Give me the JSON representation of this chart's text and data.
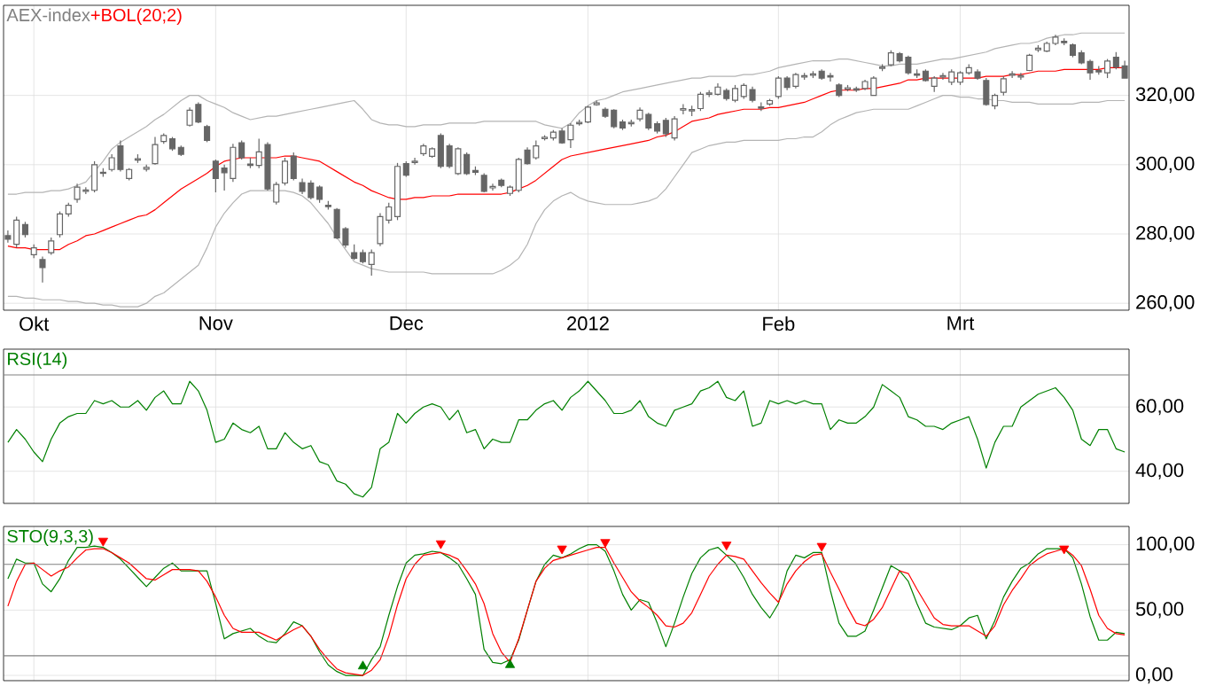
{
  "chart_data": [
    {
      "type": "candlestick",
      "title": "AEX-index",
      "legend": "top left",
      "grid": true,
      "color": "#666666",
      "ylim": [
        258,
        346
      ],
      "yticks": [
        {
          "value": 260,
          "label": "260,00"
        },
        {
          "value": 280,
          "label": "280,00"
        },
        {
          "value": 300,
          "label": "300,00"
        },
        {
          "value": 320,
          "label": "320,00"
        }
      ],
      "categories": [
        null,
        null,
        null,
        "Okt",
        null,
        null,
        null,
        null,
        null,
        null,
        null,
        null,
        null,
        null,
        null,
        null,
        null,
        null,
        null,
        null,
        null,
        null,
        null,
        null,
        "Nov",
        null,
        null,
        null,
        null,
        null,
        null,
        null,
        null,
        null,
        null,
        null,
        null,
        null,
        null,
        null,
        null,
        null,
        null,
        null,
        null,
        null,
        "Dec",
        null,
        null,
        null,
        null,
        null,
        null,
        null,
        null,
        null,
        null,
        null,
        null,
        null,
        null,
        null,
        null,
        null,
        null,
        null,
        null,
        "2012",
        null,
        null,
        null,
        null,
        null,
        null,
        null,
        null,
        null,
        null,
        null,
        null,
        null,
        null,
        null,
        null,
        null,
        null,
        null,
        null,
        null,
        "Feb",
        null,
        null,
        null,
        null,
        null,
        null,
        null,
        null,
        null,
        null,
        null,
        null,
        null,
        null,
        null,
        null,
        null,
        null,
        null,
        null,
        "Mrt",
        null,
        null,
        null,
        null,
        null,
        null,
        null,
        null,
        null,
        null,
        null,
        null,
        null,
        null,
        null,
        null,
        null,
        null,
        null
      ],
      "ohlc": [
        [
          279.5,
          281,
          277.5,
          278.5
        ],
        [
          277,
          285,
          276,
          284
        ],
        [
          282.7,
          283.5,
          279,
          279.8
        ],
        [
          274,
          277,
          273,
          276
        ],
        [
          272.6,
          273.5,
          266,
          270.3
        ],
        [
          274.6,
          279,
          274,
          278
        ],
        [
          279.8,
          286.5,
          279,
          285.8
        ],
        [
          285.8,
          289,
          285,
          288.3
        ],
        [
          290,
          294.5,
          289,
          293.5
        ],
        [
          292.3,
          293.5,
          291.5,
          292.7
        ],
        [
          292.6,
          301,
          292,
          300
        ],
        [
          297.8,
          299,
          296.5,
          297.5
        ],
        [
          298.6,
          303,
          298,
          302
        ],
        [
          305.4,
          307,
          298,
          298.6
        ],
        [
          296,
          299,
          295.5,
          298.6
        ],
        [
          301.3,
          303,
          300.5,
          301.7
        ],
        [
          298.7,
          300,
          298,
          299.2
        ],
        [
          300.3,
          308,
          300,
          305.8
        ],
        [
          306.7,
          309,
          306,
          308.4
        ],
        [
          307.5,
          308,
          304,
          304.6
        ],
        [
          305,
          305.5,
          302.5,
          303
        ],
        [
          311.4,
          316.5,
          311,
          315.7
        ],
        [
          317.4,
          318,
          312,
          312.3
        ],
        [
          311,
          311.5,
          306.5,
          307
        ],
        [
          301,
          301.5,
          292,
          296
        ],
        [
          299,
          300,
          292.5,
          297.7
        ],
        [
          296,
          306,
          295,
          305
        ],
        [
          306.3,
          307,
          301.5,
          302
        ],
        [
          300.2,
          302,
          299,
          299.8
        ],
        [
          299.8,
          307.5,
          299,
          303.7
        ],
        [
          305.8,
          306.5,
          292.5,
          293
        ],
        [
          289.2,
          295,
          288.5,
          294.3
        ],
        [
          294.7,
          302,
          294,
          301
        ],
        [
          302.5,
          303.5,
          295.5,
          296
        ],
        [
          294.8,
          296,
          291.5,
          292.3
        ],
        [
          294.7,
          295.5,
          290,
          290.5
        ],
        [
          293.5,
          294,
          289,
          290
        ],
        [
          288.3,
          289.5,
          287,
          287.9
        ],
        [
          287.1,
          287.5,
          278.5,
          278.9
        ],
        [
          281.5,
          282,
          276,
          276.8
        ],
        [
          274.6,
          277,
          272.5,
          273
        ],
        [
          274.6,
          275.5,
          271.5,
          272
        ],
        [
          271.2,
          275.5,
          268,
          274.6
        ],
        [
          277.2,
          286,
          276.5,
          285
        ],
        [
          284,
          289,
          283,
          287.8
        ],
        [
          285,
          300.5,
          284,
          299.5
        ],
        [
          300.3,
          301,
          296.5,
          297
        ],
        [
          300.6,
          302,
          300,
          301
        ],
        [
          303.2,
          306,
          302.5,
          305.4
        ],
        [
          302.4,
          305,
          302,
          304.6
        ],
        [
          308.4,
          309,
          299,
          299.5
        ],
        [
          305.4,
          306,
          299,
          299.5
        ],
        [
          297.4,
          305,
          297,
          304.6
        ],
        [
          302.9,
          303.5,
          297,
          297.4
        ],
        [
          298.3,
          299.5,
          297,
          297.8
        ],
        [
          296.9,
          297.5,
          292,
          292.3
        ],
        [
          293.3,
          294.5,
          292.5,
          293.7
        ],
        [
          295.5,
          296,
          293.5,
          294
        ],
        [
          291.7,
          294,
          291,
          293.5
        ],
        [
          292.6,
          302,
          292,
          301.5
        ],
        [
          304.2,
          305,
          300,
          300.3
        ],
        [
          302,
          307,
          301.5,
          305.4
        ],
        [
          307.5,
          308.5,
          307,
          307.9
        ],
        [
          307.7,
          310,
          307,
          309.4
        ],
        [
          309.7,
          310.5,
          306,
          306.3
        ],
        [
          307.2,
          312,
          304.8,
          311.4
        ],
        [
          311.8,
          313,
          311.3,
          312.2
        ],
        [
          312.3,
          317,
          312,
          316.6
        ],
        [
          317.3,
          318.5,
          317,
          317.8
        ],
        [
          316,
          316.5,
          313.5,
          314
        ],
        [
          315.7,
          316,
          310.5,
          311
        ],
        [
          312.3,
          313,
          310,
          310.6
        ],
        [
          311.8,
          313,
          311,
          312.2
        ],
        [
          313.2,
          316.5,
          312.5,
          315.7
        ],
        [
          314.5,
          315,
          310,
          310.6
        ],
        [
          311.8,
          312.5,
          309,
          309.7
        ],
        [
          312.8,
          313.5,
          308,
          308.9
        ],
        [
          307.7,
          314,
          307,
          313.2
        ],
        [
          315.8,
          317.5,
          314.5,
          316.2
        ],
        [
          315.5,
          317,
          314,
          315.9
        ],
        [
          316.2,
          321,
          315.5,
          320.3
        ],
        [
          320.3,
          321.5,
          319.5,
          320.7
        ],
        [
          320.3,
          323.5,
          320,
          322.4
        ],
        [
          321.4,
          322,
          318.5,
          319.1
        ],
        [
          318.6,
          323,
          318,
          322
        ],
        [
          319.7,
          323.5,
          319,
          322.9
        ],
        [
          321.7,
          322.5,
          318,
          318.6
        ],
        [
          316.7,
          318,
          315.5,
          316.3
        ],
        [
          317.5,
          319,
          317,
          318.5
        ],
        [
          319.7,
          325.5,
          319,
          325
        ],
        [
          325,
          325.5,
          321.5,
          322.3
        ],
        [
          322.6,
          326.5,
          322,
          326
        ],
        [
          325.3,
          326.5,
          324.5,
          325.7
        ],
        [
          325.8,
          327,
          325,
          326.2
        ],
        [
          327,
          327.5,
          324.5,
          325
        ],
        [
          325.7,
          326.5,
          324,
          325.3
        ],
        [
          323,
          323.5,
          319.5,
          320
        ],
        [
          321.8,
          323,
          321.2,
          322.2
        ],
        [
          321.9,
          322.5,
          321,
          321.5
        ],
        [
          322,
          324.5,
          321.5,
          324
        ],
        [
          320,
          325.5,
          320,
          325
        ],
        [
          327.8,
          329,
          327,
          328.2
        ],
        [
          328.8,
          333,
          328.5,
          332.3
        ],
        [
          332,
          332.5,
          329.5,
          330
        ],
        [
          331,
          331.5,
          326,
          326.5
        ],
        [
          326.2,
          327.5,
          325,
          325.8
        ],
        [
          327,
          327.5,
          324,
          324.3
        ],
        [
          322.6,
          325.5,
          321,
          325
        ],
        [
          325.3,
          326.5,
          324.5,
          325.7
        ],
        [
          323.8,
          327.5,
          323,
          326.8
        ],
        [
          323.8,
          327,
          323,
          326.5
        ],
        [
          326.5,
          329,
          326,
          328
        ],
        [
          326.8,
          327.5,
          324.5,
          325
        ],
        [
          324.3,
          325,
          317,
          317.4
        ],
        [
          317,
          320.5,
          316,
          320
        ],
        [
          320.9,
          325.5,
          320,
          324.8
        ],
        [
          325.8,
          327,
          325,
          326.2
        ],
        [
          325.3,
          326.5,
          324.5,
          325.7
        ],
        [
          327.2,
          332,
          327,
          331.6
        ],
        [
          333.2,
          334.5,
          332.5,
          333.6
        ],
        [
          332.8,
          335.5,
          332.5,
          335
        ],
        [
          335,
          337.5,
          334.5,
          336.8
        ],
        [
          335.6,
          336.5,
          334.5,
          335.2
        ],
        [
          334.6,
          335,
          331,
          331.6
        ],
        [
          332.3,
          333,
          329,
          329.4
        ],
        [
          329.8,
          330.3,
          324.5,
          326.5
        ],
        [
          327.2,
          328.5,
          326,
          326.8
        ],
        [
          326.5,
          330.5,
          325,
          329.9
        ],
        [
          331,
          332.5,
          327.5,
          328.2
        ],
        [
          328.5,
          330,
          325,
          325
        ]
      ],
      "series": [
        {
          "type": "line",
          "color": "#b4b4b4",
          "values": [
            291.5,
            291.5,
            292,
            292,
            292,
            292.5,
            292.5,
            293,
            294,
            295,
            298,
            301,
            304.5,
            306.5,
            308,
            309.5,
            311,
            313,
            314.5,
            316.5,
            318.5,
            320,
            320,
            318.5,
            317.5,
            316.5,
            315,
            314,
            313,
            313.5,
            314,
            314,
            314.5,
            315,
            315.5,
            316,
            316.5,
            317,
            317.5,
            318,
            318.5,
            316,
            313,
            312,
            311.5,
            311.5,
            311,
            311,
            311.5,
            311.5,
            311.5,
            312,
            312,
            312,
            312,
            312.5,
            312.5,
            312.5,
            312.5,
            312.5,
            312.5,
            312.5,
            311.5,
            311,
            310.5,
            312,
            315,
            317,
            318.5,
            319,
            320,
            321,
            321.5,
            322,
            322.5,
            323,
            323.5,
            324,
            324.5,
            325,
            325,
            325.5,
            325.5,
            325.5,
            325.5,
            326,
            326,
            326.5,
            327,
            328,
            328.5,
            329,
            329.5,
            330,
            330,
            330,
            330.5,
            330.5,
            330,
            329.5,
            329,
            328.5,
            328.5,
            329,
            329,
            329,
            329.5,
            330,
            330.5,
            330.5,
            331,
            331.5,
            332,
            332.5,
            333.5,
            334,
            334.5,
            335,
            335,
            335.5,
            336.5,
            337,
            337.5,
            337.5,
            338,
            338,
            338,
            338,
            338,
            338
          ]
        },
        {
          "type": "line",
          "color": "#b4b4b4",
          "values": [
            262,
            262,
            261.5,
            261.5,
            261,
            261,
            261,
            260.5,
            260.5,
            260,
            260,
            259.5,
            259.5,
            259,
            259,
            259,
            260,
            262,
            263,
            265,
            267,
            269,
            271,
            276,
            282,
            286,
            289,
            291.5,
            292.5,
            292.5,
            292.5,
            292.5,
            292.5,
            292,
            291,
            289,
            286,
            283,
            279,
            275.5,
            272,
            271,
            270,
            269.5,
            269,
            269,
            269,
            269,
            269,
            268.5,
            268.5,
            268.5,
            268.5,
            268.5,
            268.5,
            268.5,
            268.5,
            269.5,
            271,
            273,
            277,
            283,
            287,
            289.5,
            291,
            292,
            290.5,
            289.5,
            289,
            288.5,
            288.5,
            288.5,
            288.5,
            289,
            289.5,
            290.5,
            293,
            296.5,
            300,
            303.5,
            304.5,
            305.5,
            306,
            306.5,
            306.5,
            307,
            307,
            307,
            307,
            307,
            307.5,
            307.5,
            308,
            308,
            309.5,
            311.5,
            313,
            314,
            315,
            315.5,
            316,
            316,
            316,
            316,
            316,
            317,
            318,
            319,
            320,
            320,
            319.5,
            319.5,
            319,
            319,
            318.5,
            318.5,
            318,
            318,
            318,
            317.5,
            317.5,
            317.5,
            317.5,
            317.5,
            318,
            318,
            318,
            318.5,
            318.5,
            318.5
          ]
        },
        {
          "type": "line",
          "name": "+BOL(20;2)",
          "color": "#ff0000",
          "values": [
            276.5,
            276,
            276,
            275.5,
            275.5,
            275.5,
            275.5,
            277,
            278,
            279.5,
            280,
            281,
            282,
            283,
            284,
            285,
            285.5,
            287,
            289,
            291,
            293,
            294.5,
            296,
            297.5,
            299.5,
            301,
            301.5,
            302,
            302,
            302,
            302,
            302,
            302.5,
            302.5,
            302,
            301.5,
            301,
            299.5,
            298,
            296.5,
            295,
            294,
            292.5,
            291.5,
            290.5,
            290,
            290,
            290.5,
            290.5,
            291,
            291,
            291,
            291.5,
            291.5,
            291.5,
            291.5,
            291.5,
            291.5,
            292,
            293,
            294,
            295.5,
            297.5,
            299.5,
            301.5,
            302.5,
            303,
            303.5,
            304,
            304.5,
            305,
            305.5,
            306,
            306.5,
            307,
            308,
            308.5,
            309.5,
            311,
            312.5,
            313,
            313.5,
            314.5,
            315,
            315.5,
            316,
            316,
            316,
            316.5,
            316.5,
            317,
            317.5,
            318,
            319,
            320,
            321,
            321.5,
            321.5,
            321.5,
            322,
            322,
            322.5,
            323,
            323.5,
            324.5,
            324.5,
            325,
            325,
            325,
            325,
            325,
            325,
            325,
            325.5,
            325.5,
            325.5,
            326,
            326,
            326.5,
            327,
            327,
            327,
            327.5,
            327.5,
            327.5,
            327.5,
            327.5,
            328,
            328,
            328
          ]
        }
      ]
    },
    {
      "type": "line",
      "legend": "top left",
      "grid": true,
      "tick_labels": "y",
      "ylim": [
        30,
        78
      ],
      "yticks": [
        {
          "value": 40,
          "label": "40,00"
        },
        {
          "value": 60,
          "label": "60,00"
        }
      ],
      "categories": [
        null,
        null,
        null,
        null,
        null,
        null,
        null,
        null,
        null,
        null,
        null,
        null,
        null,
        null,
        null,
        null,
        null,
        null,
        null,
        null,
        null,
        null,
        null,
        null,
        null,
        null,
        null,
        null,
        null,
        null,
        null,
        null,
        null,
        null,
        null,
        null,
        null,
        null,
        null,
        null,
        null,
        null,
        null,
        null,
        null,
        null,
        null,
        null,
        null,
        null,
        null,
        null,
        null,
        null,
        null,
        null,
        null,
        null,
        null,
        null,
        null,
        null,
        null,
        null,
        null,
        null,
        null,
        null,
        null,
        null,
        null,
        null,
        null,
        null,
        null,
        null,
        null,
        null,
        null,
        null,
        null,
        null,
        null,
        null,
        null,
        null,
        null,
        null,
        null,
        null,
        null,
        null,
        null,
        null,
        null,
        null,
        null,
        null,
        null,
        null,
        null,
        null,
        null,
        null,
        null,
        null,
        null,
        null,
        null,
        null,
        null,
        null,
        null,
        null,
        null,
        null,
        null,
        null,
        null,
        null,
        null,
        null,
        null,
        null,
        null,
        null,
        null,
        null,
        null,
        null
      ],
      "ref_lines": [
        {
          "axis": "y",
          "value": 70,
          "color": "#808080"
        }
      ],
      "series": [
        {
          "name": "RSI(14)",
          "color": "#008000",
          "values": [
            49,
            53,
            50,
            46,
            43,
            50,
            55,
            57,
            58,
            58,
            62,
            61,
            62,
            60,
            60,
            62,
            59,
            63,
            65,
            61,
            61,
            68,
            65,
            59,
            49,
            50,
            55,
            53,
            52,
            54,
            47,
            47,
            52,
            49,
            47,
            48,
            43,
            42,
            37,
            36,
            33,
            32,
            35,
            47,
            49,
            58,
            55,
            58,
            60,
            61,
            60,
            56,
            59,
            52,
            53,
            47,
            50,
            49,
            49,
            56,
            56,
            59,
            61,
            62,
            59,
            63,
            65,
            68,
            65,
            62,
            58,
            58,
            59,
            62,
            57,
            55,
            54,
            59,
            60,
            61,
            65,
            66,
            68,
            63,
            62,
            65,
            54,
            55,
            62,
            61,
            62,
            61,
            62,
            61,
            61,
            53,
            56,
            55,
            55,
            57,
            60,
            67,
            65,
            63,
            57,
            56,
            54,
            54,
            53,
            55,
            56,
            57,
            50,
            41,
            49,
            54,
            54,
            60,
            62,
            64,
            65,
            66,
            63,
            59,
            50,
            48,
            53,
            53,
            47,
            46
          ]
        }
      ]
    },
    {
      "type": "line",
      "legend": "top left",
      "grid": true,
      "tick_labels": "y",
      "ylim": [
        -4,
        114
      ],
      "yticks": [
        {
          "value": 0,
          "label": "0,00"
        },
        {
          "value": 50,
          "label": "50,00"
        },
        {
          "value": 100,
          "label": "100,00"
        }
      ],
      "categories": [
        null,
        null,
        null,
        null,
        null,
        null,
        null,
        null,
        null,
        null,
        null,
        null,
        null,
        null,
        null,
        null,
        null,
        null,
        null,
        null,
        null,
        null,
        null,
        null,
        null,
        null,
        null,
        null,
        null,
        null,
        null,
        null,
        null,
        null,
        null,
        null,
        null,
        null,
        null,
        null,
        null,
        null,
        null,
        null,
        null,
        null,
        null,
        null,
        null,
        null,
        null,
        null,
        null,
        null,
        null,
        null,
        null,
        null,
        null,
        null,
        null,
        null,
        null,
        null,
        null,
        null,
        null,
        null,
        null,
        null,
        null,
        null,
        null,
        null,
        null,
        null,
        null,
        null,
        null,
        null,
        null,
        null,
        null,
        null,
        null,
        null,
        null,
        null,
        null,
        null,
        null,
        null,
        null,
        null,
        null,
        null,
        null,
        null,
        null,
        null,
        null,
        null,
        null,
        null,
        null,
        null,
        null,
        null,
        null,
        null,
        null,
        null,
        null,
        null,
        null,
        null,
        null,
        null,
        null,
        null,
        null,
        null,
        null,
        null,
        null,
        null,
        null,
        null,
        null,
        null
      ],
      "ref_lines": [
        {
          "axis": "y",
          "value": 85,
          "color": "#808080"
        },
        {
          "axis": "y",
          "value": 15,
          "color": "#808080"
        }
      ],
      "series": [
        {
          "name": "STO(9,3,3)",
          "color": "#008000",
          "values": [
            74,
            89,
            86,
            86,
            70,
            64,
            74,
            88,
            98,
            98,
            99,
            98,
            94,
            89,
            82,
            75,
            68,
            75,
            82,
            86,
            80,
            80,
            80,
            80,
            55,
            28,
            32,
            34,
            36,
            30,
            26,
            25,
            32,
            41,
            38,
            30,
            18,
            8,
            3,
            0,
            0,
            0,
            12,
            22,
            46,
            68,
            86,
            92,
            93,
            95,
            94,
            90,
            85,
            74,
            62,
            20,
            10,
            9,
            12,
            27,
            50,
            72,
            85,
            92,
            90,
            93,
            97,
            100,
            100,
            95,
            80,
            62,
            50,
            58,
            56,
            40,
            22,
            40,
            60,
            78,
            90,
            96,
            98,
            92,
            86,
            75,
            62,
            52,
            44,
            55,
            80,
            92,
            90,
            94,
            94,
            65,
            40,
            30,
            30,
            34,
            50,
            67,
            84,
            80,
            72,
            55,
            40,
            37,
            36,
            35,
            38,
            44,
            46,
            28,
            42,
            60,
            72,
            82,
            86,
            93,
            97,
            97,
            97,
            90,
            70,
            45,
            27,
            27,
            33,
            32
          ]
        },
        {
          "color": "#ff0000",
          "values": [
            53,
            72,
            85,
            86,
            81,
            76,
            80,
            83,
            90,
            96,
            97,
            97,
            94,
            90,
            86,
            80,
            74,
            73,
            77,
            81,
            81,
            81,
            80,
            72,
            60,
            46,
            36,
            33,
            33,
            33,
            30,
            27,
            31,
            35,
            38,
            30,
            20,
            12,
            5,
            2,
            1,
            0,
            4,
            12,
            30,
            54,
            74,
            85,
            92,
            93,
            94,
            92,
            89,
            80,
            70,
            55,
            32,
            18,
            10,
            28,
            50,
            72,
            82,
            88,
            90,
            92,
            94,
            96,
            98,
            98,
            86,
            75,
            64,
            57,
            52,
            46,
            38,
            37,
            40,
            48,
            62,
            76,
            85,
            92,
            91,
            89,
            80,
            71,
            63,
            56,
            70,
            80,
            87,
            92,
            93,
            79,
            66,
            52,
            40,
            38,
            43,
            52,
            66,
            80,
            78,
            66,
            55,
            44,
            39,
            38,
            38,
            38,
            34,
            30,
            38,
            54,
            65,
            74,
            84,
            89,
            93,
            95,
            97,
            92,
            84,
            66,
            46,
            36,
            32,
            31
          ]
        },
        {
          "type": "scatter",
          "marker": "triangle",
          "color": "#ff0000",
          "values": [
            null,
            null,
            null,
            null,
            null,
            null,
            null,
            null,
            null,
            null,
            null,
            103,
            null,
            null,
            null,
            null,
            null,
            null,
            null,
            null,
            null,
            null,
            null,
            null,
            null,
            null,
            null,
            null,
            null,
            null,
            null,
            null,
            null,
            null,
            null,
            null,
            null,
            null,
            null,
            null,
            null,
            null,
            null,
            null,
            null,
            null,
            null,
            null,
            null,
            null,
            101,
            null,
            null,
            null,
            null,
            null,
            null,
            null,
            null,
            null,
            null,
            null,
            null,
            null,
            97,
            null,
            null,
            null,
            null,
            102,
            null,
            null,
            null,
            null,
            null,
            null,
            null,
            null,
            null,
            null,
            null,
            null,
            null,
            100,
            null,
            null,
            null,
            null,
            null,
            null,
            null,
            null,
            null,
            null,
            99,
            null,
            null,
            null,
            null,
            null,
            null,
            null,
            null,
            null,
            null,
            null,
            null,
            null,
            null,
            null,
            null,
            null,
            null,
            null,
            null,
            null,
            null,
            null,
            null,
            null,
            null,
            null,
            97,
            null,
            null,
            null,
            null,
            null,
            null,
            null
          ]
        },
        {
          "type": "scatter",
          "marker": "triangle",
          "color": "#008000",
          "values": [
            null,
            null,
            null,
            null,
            null,
            null,
            null,
            null,
            null,
            null,
            null,
            null,
            null,
            null,
            null,
            null,
            null,
            null,
            null,
            null,
            null,
            null,
            null,
            null,
            null,
            null,
            null,
            null,
            null,
            null,
            null,
            null,
            null,
            null,
            null,
            null,
            null,
            null,
            null,
            null,
            null,
            7,
            null,
            null,
            null,
            null,
            null,
            null,
            null,
            null,
            null,
            null,
            null,
            null,
            null,
            null,
            null,
            null,
            8,
            null,
            null,
            null,
            null,
            null,
            null,
            null,
            null,
            null,
            null,
            null,
            null,
            null,
            null,
            null,
            null,
            null,
            null,
            null,
            null,
            null,
            null,
            null,
            null,
            null,
            null,
            null,
            null,
            null,
            null,
            null,
            null,
            null,
            null,
            null,
            null,
            null,
            null,
            null,
            null,
            null,
            null,
            null,
            null,
            null,
            null,
            null,
            null,
            null,
            null,
            null,
            null,
            null,
            null,
            null,
            null,
            null,
            null,
            null,
            null,
            null,
            null,
            null,
            null,
            null,
            null,
            null,
            null,
            null,
            null,
            null
          ]
        }
      ]
    }
  ]
}
